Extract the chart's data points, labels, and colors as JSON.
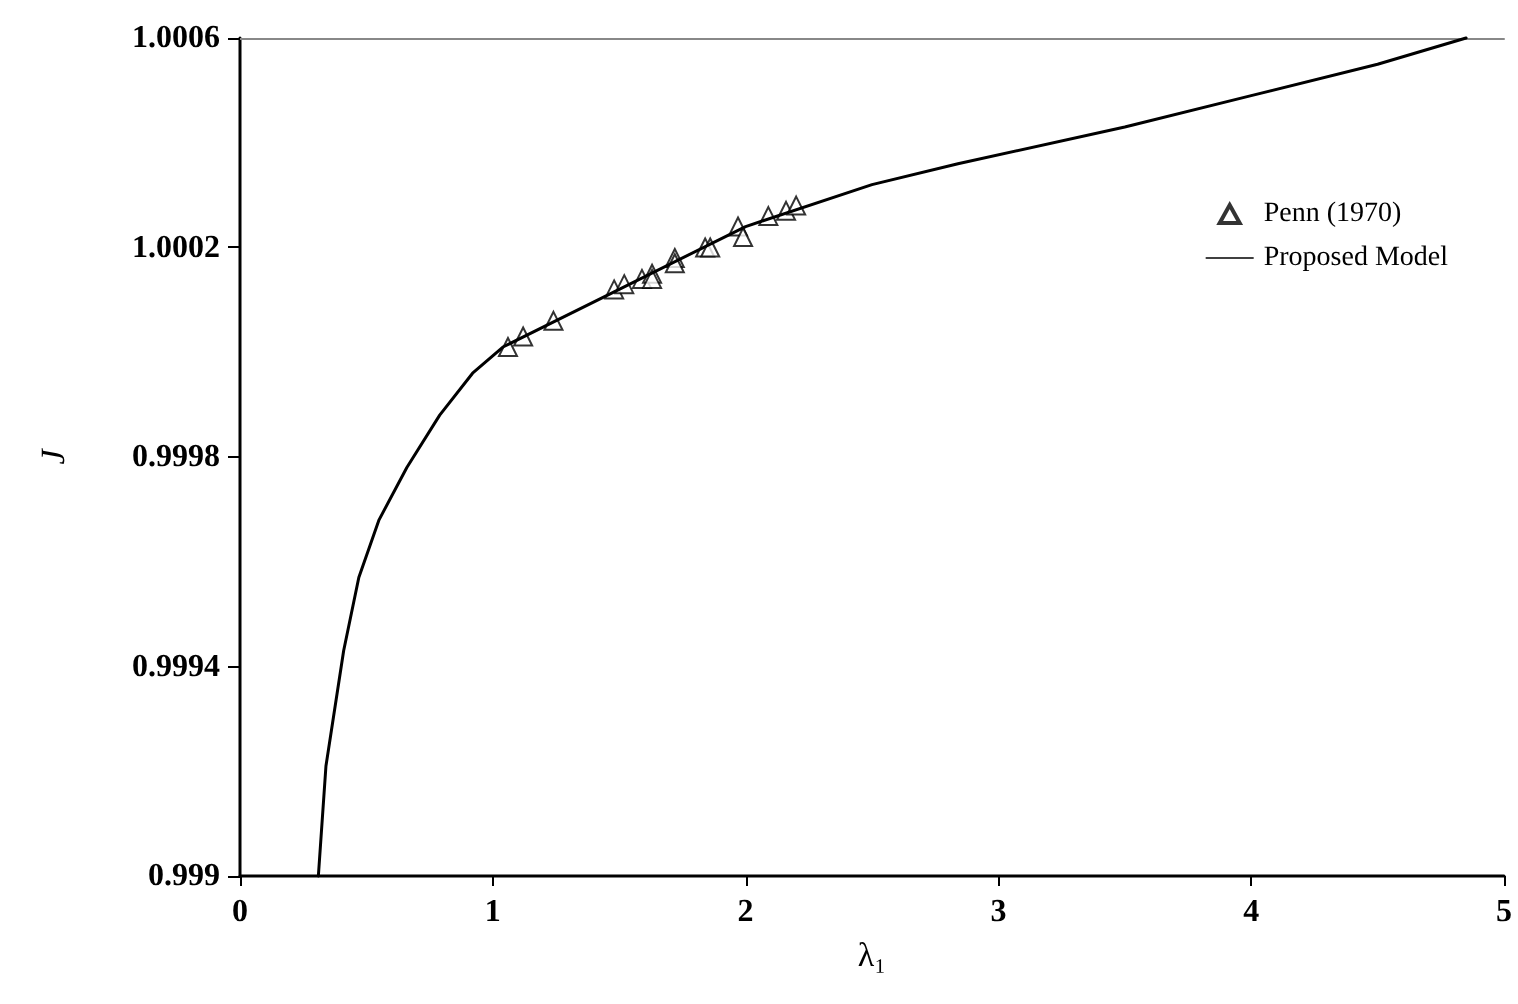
{
  "chart_data": {
    "type": "scatter",
    "xlabel": "λ₁",
    "ylabel": "J",
    "xlim": [
      0,
      5
    ],
    "xticks": [
      0,
      1,
      2,
      3,
      4,
      5
    ],
    "ylim": [
      0.999,
      1.0006
    ],
    "yticks": [
      0.999,
      0.9994,
      0.9998,
      1.0002,
      1.0006
    ],
    "grid": false,
    "legend": "right",
    "series": [
      {
        "name": "Penn (1970)",
        "marker": "triangle",
        "color": "#000000",
        "x": [
          1.06,
          1.12,
          1.24,
          1.48,
          1.52,
          1.59,
          1.63,
          1.63,
          1.72,
          1.72,
          1.84,
          1.86,
          1.97,
          1.99,
          2.09,
          2.16,
          2.2
        ],
        "values": [
          1.00001,
          1.00003,
          1.00006,
          1.00012,
          1.00013,
          1.00014,
          1.00015,
          1.00014,
          1.00018,
          1.00017,
          1.0002,
          1.0002,
          1.00024,
          1.00022,
          1.00026,
          1.00027,
          1.00028
        ]
      },
      {
        "name": "Proposed Model",
        "type": "line",
        "marker": "none",
        "line_style": "solid",
        "color": "#000000",
        "x": [
          0.31,
          0.34,
          0.41,
          0.47,
          0.55,
          0.66,
          0.79,
          0.92,
          1.04,
          1.5,
          2,
          2.5,
          2.84,
          3.5,
          4,
          4.5,
          4.85
        ],
        "values": [
          0.999,
          0.99921,
          0.99943,
          0.99957,
          0.99968,
          0.99978,
          0.99988,
          0.99996,
          1.00001,
          1.00012,
          1.00024,
          1.00032,
          1.00036,
          1.00043,
          1.00049,
          1.00055,
          1.0006
        ]
      }
    ]
  }
}
